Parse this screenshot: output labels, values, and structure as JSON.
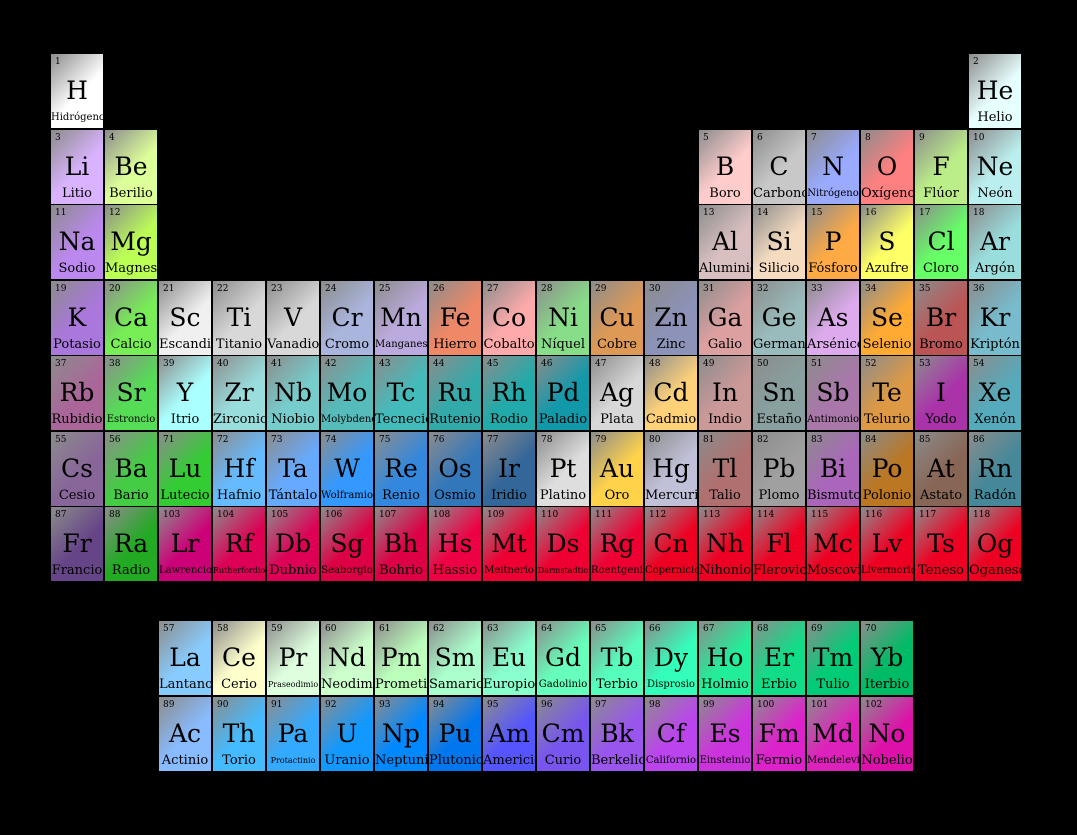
{
  "colors": {
    "1": "#ffffff",
    "2": "#e6ffff",
    "3": "#d9b3ff",
    "4": "#ddff99",
    "5": "#ffcccc",
    "6": "#c8c8c8",
    "7": "#99aaff",
    "8": "#ff8080",
    "9": "#bbee88",
    "10": "#bbeeee",
    "11": "#bb88ee",
    "12": "#bbff55",
    "13": "#d9bfbf",
    "14": "#f5dbc0",
    "15": "#ffaa44",
    "16": "#ffff66",
    "17": "#66ff66",
    "18": "#99dddd",
    "19": "#aa77dd",
    "20": "#77ee55",
    "21": "#f0f0f0",
    "22": "#d8d8d8",
    "23": "#d8d8d8",
    "24": "#aab5dd",
    "25": "#bbaadd",
    "26": "#ee8866",
    "27": "#ffaaaa",
    "28": "#88dd88",
    "29": "#dd9955",
    "30": "#8c92b8",
    "31": "#dda0a0",
    "32": "#99bbbb",
    "33": "#ddaaee",
    "34": "#ffaa33",
    "35": "#bb5555",
    "36": "#77bbcc",
    "37": "#aa6699",
    "38": "#55dd55",
    "39": "#aaffff",
    "40": "#99dddd",
    "41": "#77cccc",
    "42": "#55bbbb",
    "43": "#44bbbb",
    "44": "#33aaaa",
    "45": "#22aaaa",
    "46": "#1199aa",
    "47": "#d8d8d8",
    "48": "#ffd27a",
    "49": "#cc9999",
    "50": "#88a0a0",
    "51": "#aa77aa",
    "52": "#dd9944",
    "53": "#aa33aa",
    "54": "#55aabb",
    "55": "#886699",
    "56": "#44cc44",
    "57": "#88ccff",
    "58": "#ffffcc",
    "59": "#ddffdd",
    "60": "#ccffcc",
    "61": "#bbffbb",
    "62": "#aaffcc",
    "63": "#88ffcc",
    "64": "#66ffbb",
    "65": "#55ffbb",
    "66": "#33ffbb",
    "67": "#22ee99",
    "68": "#11dd88",
    "69": "#00cc77",
    "70": "#00bb66",
    "71": "#33cc33",
    "72": "#66bbff",
    "73": "#66aaff",
    "74": "#3399ff",
    "75": "#3388dd",
    "76": "#3377bb",
    "77": "#336699",
    "78": "#dedede",
    "79": "#ffd24a",
    "80": "#c0c0d8",
    "81": "#b07070",
    "82": "#a0a0a0",
    "83": "#aa66bb",
    "84": "#bb7722",
    "85": "#886655",
    "86": "#448899",
    "87": "#664488",
    "88": "#22aa22",
    "89": "#88bbff",
    "90": "#44bbff",
    "91": "#33aaff",
    "92": "#1199ff",
    "93": "#0088ff",
    "94": "#0077ee",
    "95": "#5555ff",
    "96": "#7755ee",
    "97": "#9955ee",
    "98": "#bb44ee",
    "99": "#cc33dd",
    "100": "#dd22cc",
    "101": "#dd22bb",
    "102": "#dd11aa",
    "103": "#cc0077",
    "104": "#dd0055",
    "105": "#dd0055",
    "106": "#dd0044",
    "107": "#dd0044",
    "108": "#ee0044",
    "109": "#ee0033",
    "110": "#ee0033",
    "111": "#ee0033",
    "112": "#ee0022",
    "113": "#ee0022",
    "114": "#ee0022",
    "115": "#ee0022",
    "116": "#ee0022",
    "117": "#ee0022",
    "118": "#ee0022"
  },
  "elements": [
    {
      "n": "1",
      "s": "H",
      "name": "Hidrógeno"
    },
    {
      "n": "2",
      "s": "He",
      "name": "Helio"
    },
    {
      "n": "3",
      "s": "Li",
      "name": "Litio"
    },
    {
      "n": "4",
      "s": "Be",
      "name": "Berilio"
    },
    {
      "n": "5",
      "s": "B",
      "name": "Boro"
    },
    {
      "n": "6",
      "s": "C",
      "name": "Carbono"
    },
    {
      "n": "7",
      "s": "N",
      "name": "Nitrógeno"
    },
    {
      "n": "8",
      "s": "O",
      "name": "Oxígeno"
    },
    {
      "n": "9",
      "s": "F",
      "name": "Flúor"
    },
    {
      "n": "10",
      "s": "Ne",
      "name": "Neón"
    },
    {
      "n": "11",
      "s": "Na",
      "name": "Sodio"
    },
    {
      "n": "12",
      "s": "Mg",
      "name": "Magnesio"
    },
    {
      "n": "13",
      "s": "Al",
      "name": "Aluminio"
    },
    {
      "n": "14",
      "s": "Si",
      "name": "Silicio"
    },
    {
      "n": "15",
      "s": "P",
      "name": "Fósforo"
    },
    {
      "n": "16",
      "s": "S",
      "name": "Azufre"
    },
    {
      "n": "17",
      "s": "Cl",
      "name": "Cloro"
    },
    {
      "n": "18",
      "s": "Ar",
      "name": "Argón"
    },
    {
      "n": "19",
      "s": "K",
      "name": "Potasio"
    },
    {
      "n": "20",
      "s": "Ca",
      "name": "Calcio"
    },
    {
      "n": "21",
      "s": "Sc",
      "name": "Escandio"
    },
    {
      "n": "22",
      "s": "Ti",
      "name": "Titanio"
    },
    {
      "n": "23",
      "s": "V",
      "name": "Vanadio"
    },
    {
      "n": "24",
      "s": "Cr",
      "name": "Cromo"
    },
    {
      "n": "25",
      "s": "Mn",
      "name": "Manganeso"
    },
    {
      "n": "26",
      "s": "Fe",
      "name": "Hierro"
    },
    {
      "n": "27",
      "s": "Co",
      "name": "Cobalto"
    },
    {
      "n": "28",
      "s": "Ni",
      "name": "Níquel"
    },
    {
      "n": "29",
      "s": "Cu",
      "name": "Cobre"
    },
    {
      "n": "30",
      "s": "Zn",
      "name": "Zinc"
    },
    {
      "n": "31",
      "s": "Ga",
      "name": "Galio"
    },
    {
      "n": "32",
      "s": "Ge",
      "name": "Germanio"
    },
    {
      "n": "33",
      "s": "As",
      "name": "Arsénico"
    },
    {
      "n": "34",
      "s": "Se",
      "name": "Selenio"
    },
    {
      "n": "35",
      "s": "Br",
      "name": "Bromo"
    },
    {
      "n": "36",
      "s": "Kr",
      "name": "Kriptón"
    },
    {
      "n": "37",
      "s": "Rb",
      "name": "Rubidio"
    },
    {
      "n": "38",
      "s": "Sr",
      "name": "Estroncio"
    },
    {
      "n": "39",
      "s": "Y",
      "name": "Itrio"
    },
    {
      "n": "40",
      "s": "Zr",
      "name": "Zirconio"
    },
    {
      "n": "41",
      "s": "Nb",
      "name": "Niobio"
    },
    {
      "n": "42",
      "s": "Mo",
      "name": "Molybdeno"
    },
    {
      "n": "43",
      "s": "Tc",
      "name": "Tecnecio"
    },
    {
      "n": "44",
      "s": "Ru",
      "name": "Rutenio"
    },
    {
      "n": "45",
      "s": "Rh",
      "name": "Rodio"
    },
    {
      "n": "46",
      "s": "Pd",
      "name": "Paladio"
    },
    {
      "n": "47",
      "s": "Ag",
      "name": "Plata"
    },
    {
      "n": "48",
      "s": "Cd",
      "name": "Cadmio"
    },
    {
      "n": "49",
      "s": "In",
      "name": "Indio"
    },
    {
      "n": "50",
      "s": "Sn",
      "name": "Estaño"
    },
    {
      "n": "51",
      "s": "Sb",
      "name": "Antimonio"
    },
    {
      "n": "52",
      "s": "Te",
      "name": "Telurio"
    },
    {
      "n": "53",
      "s": "I",
      "name": "Yodo"
    },
    {
      "n": "54",
      "s": "Xe",
      "name": "Xenón"
    },
    {
      "n": "55",
      "s": "Cs",
      "name": "Cesio"
    },
    {
      "n": "56",
      "s": "Ba",
      "name": "Bario"
    },
    {
      "n": "57",
      "s": "La",
      "name": "Lantano"
    },
    {
      "n": "58",
      "s": "Ce",
      "name": "Cerio"
    },
    {
      "n": "59",
      "s": "Pr",
      "name": "Praseodimio"
    },
    {
      "n": "60",
      "s": "Nd",
      "name": "Neodimio"
    },
    {
      "n": "61",
      "s": "Pm",
      "name": "Prometio"
    },
    {
      "n": "62",
      "s": "Sm",
      "name": "Samario"
    },
    {
      "n": "63",
      "s": "Eu",
      "name": "Europio"
    },
    {
      "n": "64",
      "s": "Gd",
      "name": "Gadolinio"
    },
    {
      "n": "65",
      "s": "Tb",
      "name": "Terbio"
    },
    {
      "n": "66",
      "s": "Dy",
      "name": "Disprosio"
    },
    {
      "n": "67",
      "s": "Ho",
      "name": "Holmio"
    },
    {
      "n": "68",
      "s": "Er",
      "name": "Erbio"
    },
    {
      "n": "69",
      "s": "Tm",
      "name": "Tulio"
    },
    {
      "n": "70",
      "s": "Yb",
      "name": "Iterbio"
    },
    {
      "n": "71",
      "s": "Lu",
      "name": "Lutecio"
    },
    {
      "n": "72",
      "s": "Hf",
      "name": "Hafnio"
    },
    {
      "n": "73",
      "s": "Ta",
      "name": "Tántalo"
    },
    {
      "n": "74",
      "s": "W",
      "name": "Wolframio"
    },
    {
      "n": "75",
      "s": "Re",
      "name": "Renio"
    },
    {
      "n": "76",
      "s": "Os",
      "name": "Osmio"
    },
    {
      "n": "77",
      "s": "Ir",
      "name": "Iridio"
    },
    {
      "n": "78",
      "s": "Pt",
      "name": "Platino"
    },
    {
      "n": "79",
      "s": "Au",
      "name": "Oro"
    },
    {
      "n": "80",
      "s": "Hg",
      "name": "Mercurio"
    },
    {
      "n": "81",
      "s": "Tl",
      "name": "Talio"
    },
    {
      "n": "82",
      "s": "Pb",
      "name": "Plomo"
    },
    {
      "n": "83",
      "s": "Bi",
      "name": "Bismuto"
    },
    {
      "n": "84",
      "s": "Po",
      "name": "Polonio"
    },
    {
      "n": "85",
      "s": "At",
      "name": "Astato"
    },
    {
      "n": "86",
      "s": "Rn",
      "name": "Radón"
    },
    {
      "n": "87",
      "s": "Fr",
      "name": "Francio"
    },
    {
      "n": "88",
      "s": "Ra",
      "name": "Radio"
    },
    {
      "n": "89",
      "s": "Ac",
      "name": "Actinio"
    },
    {
      "n": "90",
      "s": "Th",
      "name": "Torio"
    },
    {
      "n": "91",
      "s": "Pa",
      "name": "Protactinio"
    },
    {
      "n": "92",
      "s": "U",
      "name": "Uranio"
    },
    {
      "n": "93",
      "s": "Np",
      "name": "Neptunio"
    },
    {
      "n": "94",
      "s": "Pu",
      "name": "Plutonio"
    },
    {
      "n": "95",
      "s": "Am",
      "name": "Americio"
    },
    {
      "n": "96",
      "s": "Cm",
      "name": "Curio"
    },
    {
      "n": "97",
      "s": "Bk",
      "name": "Berkelio"
    },
    {
      "n": "98",
      "s": "Cf",
      "name": "Californio"
    },
    {
      "n": "99",
      "s": "Es",
      "name": "Einsteinio"
    },
    {
      "n": "100",
      "s": "Fm",
      "name": "Fermio"
    },
    {
      "n": "101",
      "s": "Md",
      "name": "Mendelevio"
    },
    {
      "n": "102",
      "s": "No",
      "name": "Nobelio"
    },
    {
      "n": "103",
      "s": "Lr",
      "name": "Lawrencio"
    },
    {
      "n": "104",
      "s": "Rf",
      "name": "Rutherfordio"
    },
    {
      "n": "105",
      "s": "Db",
      "name": "Dubnio"
    },
    {
      "n": "106",
      "s": "Sg",
      "name": "Seaborgio"
    },
    {
      "n": "107",
      "s": "Bh",
      "name": "Bohrio"
    },
    {
      "n": "108",
      "s": "Hs",
      "name": "Hassio"
    },
    {
      "n": "109",
      "s": "Mt",
      "name": "Meitnerio"
    },
    {
      "n": "110",
      "s": "Ds",
      "name": "Darmstadtio"
    },
    {
      "n": "111",
      "s": "Rg",
      "name": "Roentgenio"
    },
    {
      "n": "112",
      "s": "Cn",
      "name": "Copernicio"
    },
    {
      "n": "113",
      "s": "Nh",
      "name": "Nihonio"
    },
    {
      "n": "114",
      "s": "Fl",
      "name": "Flerovio"
    },
    {
      "n": "115",
      "s": "Mc",
      "name": "Moscovio"
    },
    {
      "n": "116",
      "s": "Lv",
      "name": "Livermorio"
    },
    {
      "n": "117",
      "s": "Ts",
      "name": "Teneso"
    },
    {
      "n": "118",
      "s": "Og",
      "name": "Oganesón"
    }
  ]
}
